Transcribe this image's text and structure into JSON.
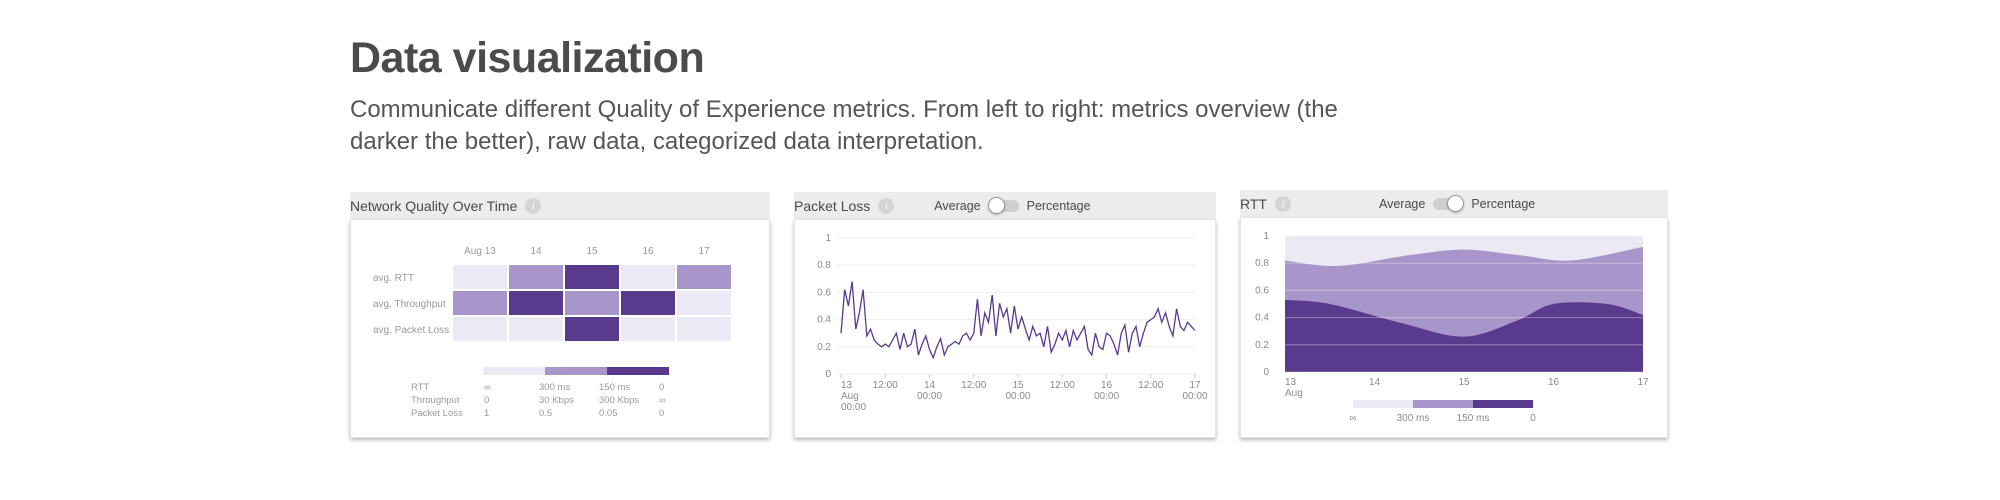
{
  "page": {
    "title": "Data visualization",
    "subtitle": "Communicate different Quality of Experience metrics. From left to right: metrics overview (the darker the better), raw data, categorized data interpretation."
  },
  "colors": {
    "level_0": "#ece8f4",
    "level_1": "#a895c9",
    "level_2": "#5a3a8c",
    "line": "#5a3a8c",
    "header_bg": "#ececec"
  },
  "cards": {
    "network": {
      "title": "Network Quality Over Time",
      "info_icon": "info-icon"
    },
    "packet_loss": {
      "title": "Packet Loss",
      "toggle_left": "Average",
      "toggle_right": "Percentage",
      "info_icon": "info-icon"
    },
    "rtt": {
      "title": "RTT",
      "toggle_left": "Average",
      "toggle_right": "Percentage",
      "info_icon": "info-icon"
    }
  },
  "chart_data": [
    {
      "type": "heatmap",
      "title": "Network Quality Over Time",
      "columns": [
        "Aug 13",
        "14",
        "15",
        "16",
        "17"
      ],
      "rows": [
        "avg. RTT",
        "avg. Throughput",
        "avg. Packet Loss"
      ],
      "levels": [
        [
          0,
          1,
          2,
          0,
          1
        ],
        [
          1,
          2,
          1,
          2,
          0
        ],
        [
          0,
          0,
          2,
          0,
          0
        ]
      ],
      "legend": {
        "rows": [
          {
            "label": "RTT",
            "values": [
              "∞",
              "300 ms",
              "150 ms",
              "0"
            ]
          },
          {
            "label": "Throughput",
            "values": [
              "0",
              "30 Kbps",
              "300 Kbps",
              "∞"
            ]
          },
          {
            "label": "Packet Loss",
            "values": [
              "1",
              "0.5",
              "0.05",
              "0"
            ]
          }
        ]
      }
    },
    {
      "type": "line",
      "title": "Packet Loss",
      "ylim": [
        0,
        1
      ],
      "y_ticks": [
        "0",
        "0.2",
        "0.4",
        "0.6",
        "0.8",
        "1"
      ],
      "x_range": [
        0,
        96
      ],
      "x_ticks": [
        {
          "x": 0,
          "lines": [
            "13",
            "Aug",
            "00:00"
          ]
        },
        {
          "x": 12,
          "lines": [
            "12:00"
          ]
        },
        {
          "x": 24,
          "lines": [
            "14",
            "00:00"
          ]
        },
        {
          "x": 36,
          "lines": [
            "12:00"
          ]
        },
        {
          "x": 48,
          "lines": [
            "15",
            "00:00"
          ]
        },
        {
          "x": 60,
          "lines": [
            "12:00"
          ]
        },
        {
          "x": 72,
          "lines": [
            "16",
            "00:00"
          ]
        },
        {
          "x": 84,
          "lines": [
            "12:00"
          ]
        },
        {
          "x": 96,
          "lines": [
            "17",
            "00:00"
          ]
        }
      ],
      "series": [
        {
          "values": [
            0.3,
            0.62,
            0.5,
            0.68,
            0.33,
            0.45,
            0.62,
            0.28,
            0.33,
            0.25,
            0.22,
            0.2,
            0.22,
            0.2,
            0.25,
            0.3,
            0.18,
            0.3,
            0.2,
            0.22,
            0.33,
            0.14,
            0.22,
            0.28,
            0.18,
            0.12,
            0.2,
            0.26,
            0.14,
            0.2,
            0.22,
            0.24,
            0.22,
            0.28,
            0.3,
            0.25,
            0.3,
            0.55,
            0.28,
            0.45,
            0.38,
            0.58,
            0.28,
            0.52,
            0.42,
            0.48,
            0.3,
            0.5,
            0.33,
            0.42,
            0.33,
            0.25,
            0.35,
            0.28,
            0.3,
            0.2,
            0.35,
            0.16,
            0.22,
            0.3,
            0.25,
            0.32,
            0.2,
            0.32,
            0.25,
            0.3,
            0.35,
            0.18,
            0.14,
            0.3,
            0.2,
            0.18,
            0.3,
            0.28,
            0.22,
            0.14,
            0.3,
            0.36,
            0.16,
            0.3,
            0.35,
            0.2,
            0.3,
            0.38,
            0.4,
            0.42,
            0.48,
            0.38,
            0.45,
            0.35,
            0.28,
            0.48,
            0.35,
            0.32,
            0.38,
            0.35,
            0.32
          ]
        }
      ]
    },
    {
      "type": "area",
      "title": "RTT",
      "ylim": [
        0,
        1
      ],
      "y_ticks": [
        "0",
        "0.2",
        "0.4",
        "0.6",
        "0.8",
        "1"
      ],
      "x_ticks": [
        {
          "x": 0,
          "lines": [
            "13",
            "Aug"
          ]
        },
        {
          "x": 1,
          "lines": [
            "14"
          ]
        },
        {
          "x": 2,
          "lines": [
            "15"
          ]
        },
        {
          "x": 3,
          "lines": [
            "16"
          ]
        },
        {
          "x": 4,
          "lines": [
            "17"
          ]
        }
      ],
      "x_range": [
        0,
        4
      ],
      "curves": {
        "upper": [
          [
            0,
            0.82
          ],
          [
            0.6,
            0.78
          ],
          [
            1.4,
            0.86
          ],
          [
            2.0,
            0.9
          ],
          [
            2.6,
            0.86
          ],
          [
            3.2,
            0.82
          ],
          [
            4.0,
            0.92
          ]
        ],
        "lower": [
          [
            0,
            0.53
          ],
          [
            0.5,
            0.5
          ],
          [
            1.3,
            0.36
          ],
          [
            2.0,
            0.26
          ],
          [
            2.6,
            0.38
          ],
          [
            3.0,
            0.5
          ],
          [
            3.6,
            0.5
          ],
          [
            4.0,
            0.42
          ]
        ]
      },
      "legend_values": [
        "∞",
        "300 ms",
        "150 ms",
        "0"
      ]
    }
  ]
}
